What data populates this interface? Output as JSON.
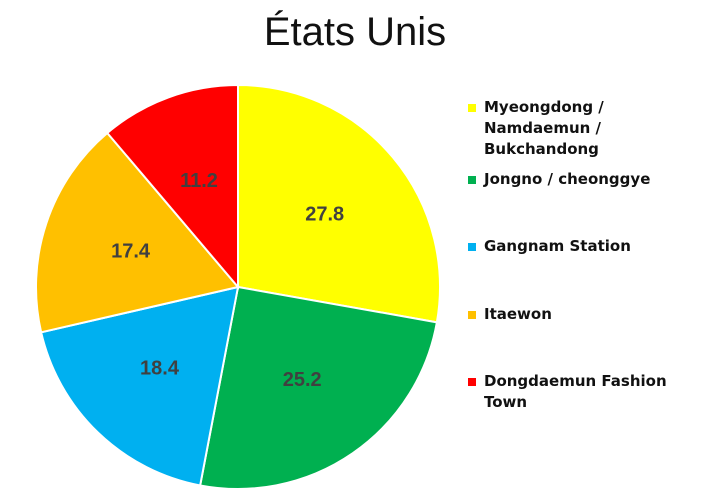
{
  "chart_data": {
    "type": "pie",
    "title": "États Unis",
    "categories": [
      "Myeongdong / Namdaemun / Bukchandong",
      "Jongno / cheonggye",
      "Gangnam Station",
      "Itaewon",
      "Dongdaemun Fashion Town"
    ],
    "values": [
      27.8,
      25.2,
      18.4,
      17.4,
      11.2
    ],
    "value_labels": [
      "27.8",
      "25.2",
      "18.4",
      "17.4",
      "11.2"
    ],
    "colors": [
      "#FFFF00",
      "#00B050",
      "#00B0F0",
      "#FFC000",
      "#FF0000"
    ],
    "legend": "right",
    "data_labels": true
  }
}
